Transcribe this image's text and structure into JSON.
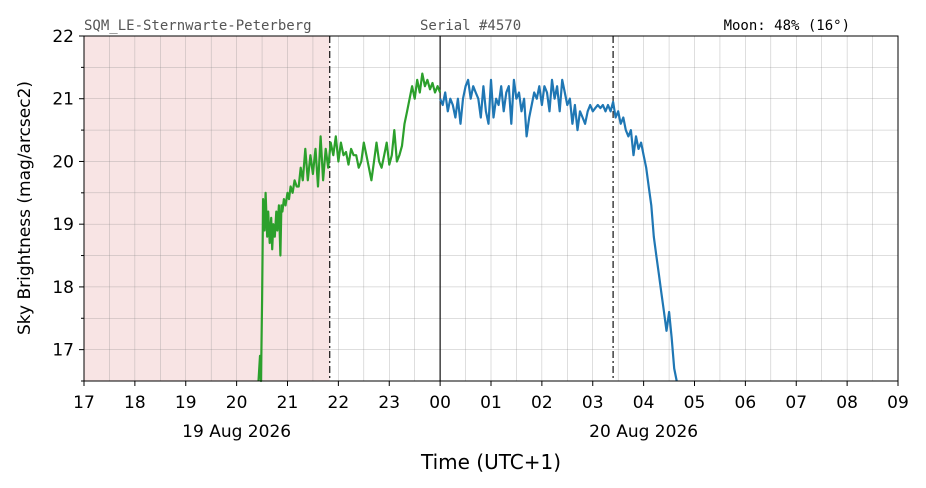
{
  "header": {
    "station": "SQM_LE-Sternwarte-Peterberg",
    "serial": "Serial #4570",
    "moon": "Moon: 48% (16°)"
  },
  "chart_data": {
    "type": "line",
    "xlabel": "Time (UTC+1)",
    "ylabel": "Sky Brightness (mag/arcsec2)",
    "x_unit": "hours",
    "xlim": [
      17,
      33
    ],
    "ylim": [
      16.5,
      22
    ],
    "y_ticks": [
      17,
      18,
      19,
      20,
      21,
      22
    ],
    "x_ticks": [
      {
        "x": 17,
        "label": "17"
      },
      {
        "x": 18,
        "label": "18"
      },
      {
        "x": 19,
        "label": "19"
      },
      {
        "x": 20,
        "label": "20"
      },
      {
        "x": 21,
        "label": "21"
      },
      {
        "x": 22,
        "label": "22"
      },
      {
        "x": 23,
        "label": "23"
      },
      {
        "x": 24,
        "label": "00"
      },
      {
        "x": 25,
        "label": "01"
      },
      {
        "x": 26,
        "label": "02"
      },
      {
        "x": 27,
        "label": "03"
      },
      {
        "x": 28,
        "label": "04"
      },
      {
        "x": 29,
        "label": "05"
      },
      {
        "x": 30,
        "label": "06"
      },
      {
        "x": 31,
        "label": "07"
      },
      {
        "x": 32,
        "label": "08"
      },
      {
        "x": 33,
        "label": "09"
      }
    ],
    "date_labels": [
      {
        "x": 20,
        "label": "19 Aug 2026"
      },
      {
        "x": 28,
        "label": "20 Aug 2026"
      }
    ],
    "shaded_region": {
      "x0": 17,
      "x1": 21.83,
      "color": "#f8e4e4"
    },
    "vlines": [
      {
        "x": 21.83,
        "style": "dashdot"
      },
      {
        "x": 24,
        "style": "solid"
      },
      {
        "x": 27.4,
        "style": "dashdot"
      }
    ],
    "series": [
      {
        "color": "#2ca02c",
        "x": [
          20.43,
          20.46,
          20.48,
          20.5,
          20.52,
          20.55,
          20.57,
          20.6,
          20.62,
          20.65,
          20.68,
          20.7,
          20.72,
          20.75,
          20.78,
          20.8,
          20.83,
          20.86,
          20.88,
          20.9,
          20.93,
          20.96,
          21.0,
          21.03,
          21.06,
          21.1,
          21.14,
          21.18,
          21.22,
          21.26,
          21.3,
          21.35,
          21.4,
          21.45,
          21.5,
          21.55,
          21.6,
          21.65,
          21.7,
          21.75,
          21.8,
          21.85,
          21.9,
          21.95,
          22.0,
          22.05,
          22.1,
          22.15,
          22.2,
          22.25,
          22.3,
          22.35,
          22.4,
          22.45,
          22.5,
          22.55,
          22.6,
          22.65,
          22.7,
          22.75,
          22.8,
          22.85,
          22.9,
          22.95,
          23.0,
          23.05,
          23.1,
          23.15,
          23.2,
          23.25,
          23.3,
          23.35,
          23.4,
          23.45,
          23.5,
          23.55,
          23.6,
          23.65,
          23.7,
          23.75,
          23.8,
          23.85,
          23.9,
          23.95,
          24.0
        ],
        "y": [
          16.5,
          16.9,
          16.5,
          17.8,
          19.4,
          18.9,
          19.5,
          18.8,
          19.2,
          18.7,
          19.1,
          18.6,
          19.0,
          18.8,
          19.2,
          18.9,
          19.3,
          18.5,
          19.3,
          19.2,
          19.4,
          19.3,
          19.5,
          19.4,
          19.6,
          19.5,
          19.7,
          19.6,
          19.6,
          19.9,
          19.7,
          20.2,
          19.7,
          20.1,
          19.8,
          20.2,
          19.6,
          20.4,
          19.7,
          20.2,
          19.9,
          20.3,
          20.1,
          20.4,
          20.0,
          20.3,
          20.1,
          20.15,
          19.95,
          20.2,
          20.1,
          20.1,
          19.9,
          20.0,
          20.3,
          20.1,
          19.9,
          19.7,
          20.0,
          20.3,
          20.0,
          19.9,
          20.1,
          20.3,
          19.95,
          20.1,
          20.5,
          20.0,
          20.1,
          20.25,
          20.6,
          20.8,
          21.0,
          21.2,
          21.0,
          21.3,
          21.1,
          21.4,
          21.2,
          21.3,
          21.15,
          21.25,
          21.1,
          21.2,
          21.1
        ]
      },
      {
        "color": "#1f77b4",
        "x": [
          24.0,
          24.05,
          24.1,
          24.15,
          24.2,
          24.25,
          24.3,
          24.35,
          24.4,
          24.45,
          24.5,
          24.55,
          24.6,
          24.65,
          24.7,
          24.75,
          24.8,
          24.85,
          24.9,
          24.95,
          25.0,
          25.05,
          25.1,
          25.15,
          25.2,
          25.25,
          25.3,
          25.35,
          25.4,
          25.45,
          25.5,
          25.55,
          25.6,
          25.65,
          25.7,
          25.75,
          25.8,
          25.85,
          25.9,
          25.95,
          26.0,
          26.05,
          26.1,
          26.15,
          26.2,
          26.25,
          26.3,
          26.35,
          26.4,
          26.45,
          26.5,
          26.55,
          26.6,
          26.65,
          26.7,
          26.75,
          26.8,
          26.85,
          26.9,
          26.95,
          27.0,
          27.05,
          27.1,
          27.15,
          27.2,
          27.25,
          27.3,
          27.35,
          27.4,
          27.45,
          27.5,
          27.55,
          27.6,
          27.65,
          27.7,
          27.75,
          27.8,
          27.85,
          27.9,
          27.95,
          28.0,
          28.05,
          28.1,
          28.15,
          28.2,
          28.25,
          28.3,
          28.35,
          28.4,
          28.45,
          28.5,
          28.55,
          28.6,
          28.65
        ],
        "y": [
          21.0,
          20.9,
          21.1,
          20.8,
          21.0,
          20.9,
          20.7,
          21.0,
          20.6,
          21.0,
          21.2,
          21.3,
          21.0,
          21.2,
          21.1,
          21.0,
          20.7,
          21.2,
          20.8,
          20.6,
          21.3,
          20.7,
          21.0,
          20.9,
          21.2,
          20.8,
          21.1,
          21.2,
          20.6,
          21.3,
          21.0,
          21.1,
          20.8,
          21.0,
          20.4,
          20.7,
          20.9,
          21.1,
          21.0,
          21.2,
          20.9,
          21.2,
          21.1,
          20.8,
          21.3,
          21.0,
          21.2,
          20.8,
          21.3,
          21.1,
          20.9,
          21.0,
          20.6,
          20.9,
          20.5,
          20.8,
          20.7,
          20.6,
          20.8,
          20.9,
          20.8,
          20.85,
          20.9,
          20.85,
          20.9,
          20.8,
          20.9,
          20.8,
          20.95,
          20.7,
          20.8,
          20.6,
          20.7,
          20.5,
          20.4,
          20.5,
          20.1,
          20.4,
          20.2,
          20.3,
          20.1,
          19.9,
          19.6,
          19.3,
          18.8,
          18.5,
          18.2,
          17.9,
          17.6,
          17.3,
          17.6,
          17.2,
          16.7,
          16.5
        ]
      }
    ]
  }
}
